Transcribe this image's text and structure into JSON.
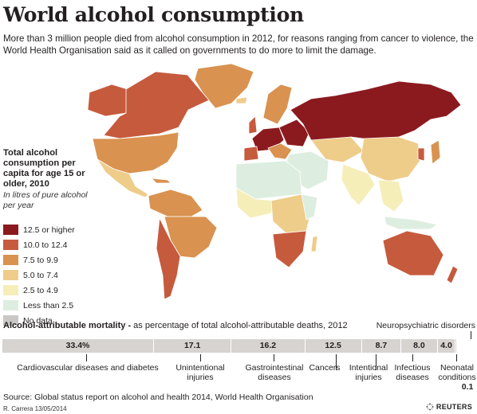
{
  "header": {
    "title": "World alcohol consumption",
    "subtitle": "More than 3 million people died from alcohol consumption in 2012, for reasons ranging from cancer to violence, the World Health Organisation said as it called on governments to do more to limit the damage."
  },
  "legend": {
    "title": "Total alcohol consumption per capita for age 15 or older, 2010",
    "subtitle": "In litres of pure alcohol per year",
    "items": [
      {
        "label": "12.5 or higher",
        "color": "#8b1a1f"
      },
      {
        "label": "10.0 to 12.4",
        "color": "#c65a3d"
      },
      {
        "label": "7.5 to 9.9",
        "color": "#d99250"
      },
      {
        "label": "5.0 to 7.4",
        "color": "#eecc8a"
      },
      {
        "label": "2.5 to 4.9",
        "color": "#f5eeb9"
      },
      {
        "label": "Less than 2.5",
        "color": "#ddeee0"
      },
      {
        "label": "No data",
        "color": "#c9c8c6"
      }
    ]
  },
  "mortality": {
    "title_bold": "Alcohol-attributable mortality -",
    "title_rest": " as percentage of total alcohol-attributable deaths, 2012",
    "segments": [
      {
        "value_label": "33.4%",
        "value": 33.4,
        "label": "Cardiovascular diseases and diabetes"
      },
      {
        "value_label": "17.1",
        "value": 17.1,
        "label": "Unintentional injuries"
      },
      {
        "value_label": "16.2",
        "value": 16.2,
        "label": "Gastrointestinal diseases"
      },
      {
        "value_label": "12.5",
        "value": 12.5,
        "label": "Cancers"
      },
      {
        "value_label": "8.7",
        "value": 8.7,
        "label": "Intentional injuries"
      },
      {
        "value_label": "8.0",
        "value": 8.0,
        "label": "Infectious diseases"
      },
      {
        "value_label": "4.0",
        "value": 4.0,
        "label": "Neuropsychiatric disorders"
      },
      {
        "value_label": "0.1",
        "value": 0.1,
        "label": "Neonatal conditions"
      }
    ]
  },
  "footer": {
    "source": "Source: Global status report on alcohol and health 2014, World Health Organisation",
    "credit": "R. Carrera 13/05/2014",
    "brand": "REUTERS"
  }
}
